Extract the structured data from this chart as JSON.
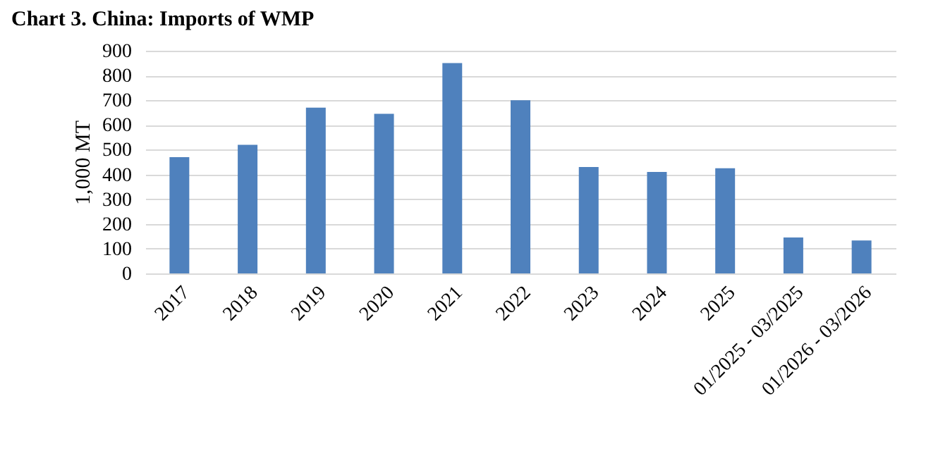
{
  "chart_data": {
    "type": "bar",
    "title": "Chart 3. China: Imports of WMP",
    "ylabel": "1,000 MT",
    "categories": [
      "2017",
      "2018",
      "2019",
      "2020",
      "2021",
      "2022",
      "2023",
      "2024",
      "2025",
      "01/2025 - 03/2025",
      "01/2026 - 03/2026"
    ],
    "values": [
      470,
      520,
      670,
      645,
      850,
      700,
      430,
      410,
      425,
      145,
      133
    ],
    "color": "#4f81bd",
    "ylim": [
      0,
      900
    ],
    "yticks": [
      0,
      100,
      200,
      300,
      400,
      500,
      600,
      700,
      800,
      900
    ],
    "grid": "y"
  }
}
